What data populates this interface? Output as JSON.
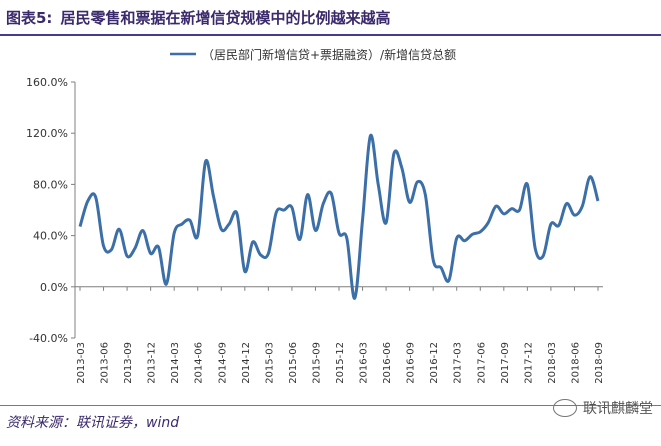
{
  "header": {
    "fig_num": "图表5:",
    "title": "居民零售和票据在新增信贷规模中的比例越来越高"
  },
  "footer": {
    "source": "资料来源：联讯证券，wind",
    "watermark": "联讯麒麟堂"
  },
  "colors": {
    "line": "#3c6fa8",
    "accent": "#3b2a6b"
  },
  "chart_data": {
    "type": "line",
    "legend": "（居民部门新增信贷+票据融资）/新增信贷总额",
    "legend_position": "top-center",
    "grid": false,
    "ylim": [
      -40,
      160
    ],
    "yticks": [
      -40,
      0,
      40,
      80,
      120,
      160
    ],
    "ytick_labels": [
      "-40.0%",
      "0.0%",
      "40.0%",
      "80.0%",
      "120.0%",
      "160.0%"
    ],
    "xtick_labels": [
      "2013-03",
      "2013-06",
      "2013-09",
      "2013-12",
      "2014-03",
      "2014-06",
      "2014-09",
      "2014-12",
      "2015-03",
      "2015-06",
      "2015-09",
      "2015-12",
      "2016-03",
      "2016-06",
      "2016-09",
      "2016-12",
      "2017-03",
      "2017-06",
      "2017-09",
      "2017-12",
      "2018-03",
      "2018-06",
      "2018-09"
    ],
    "series": [
      {
        "name": "（居民部门新增信贷+票据融资）/新增信贷总额",
        "x_start": "2013-03",
        "values": [
          47,
          67,
          70,
          32,
          29,
          45,
          24,
          30,
          44,
          26,
          31,
          2,
          42,
          49,
          52,
          40,
          98,
          71,
          45,
          49,
          57,
          12,
          35,
          25,
          26,
          58,
          60,
          62,
          37,
          72,
          44,
          65,
          73,
          42,
          38,
          -9,
          52,
          118,
          80,
          50,
          104,
          93,
          66,
          82,
          72,
          21,
          15,
          5,
          38,
          36,
          41,
          43,
          50,
          63,
          57,
          61,
          60,
          80,
          30,
          24,
          49,
          48,
          65,
          56,
          63,
          86,
          67
        ]
      }
    ]
  }
}
